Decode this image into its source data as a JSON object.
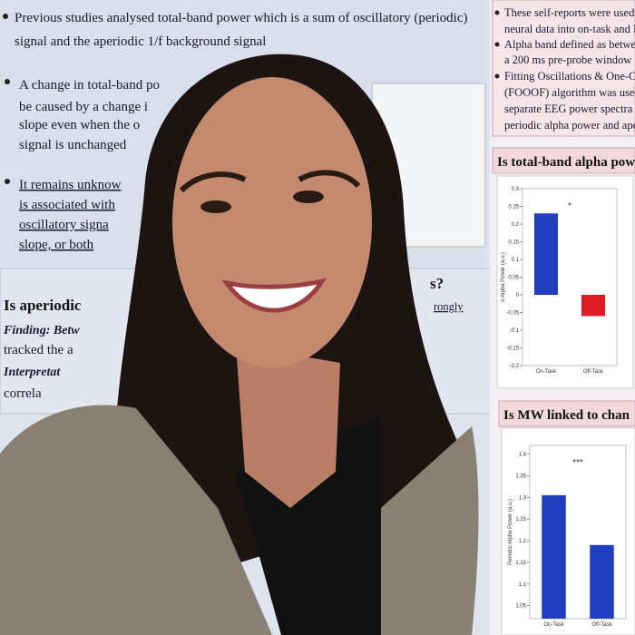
{
  "poster_left": {
    "intro": [
      "Previous studies analysed total-band power which is a sum of oscillatory (periodic)",
      "signal and the aperiodic 1/f background signal"
    ],
    "change": [
      "A change in total-band po",
      "be caused by a change i",
      "slope even when the o",
      "signal is unchanged"
    ],
    "unknown": [
      "It remains unknow",
      "is associated with",
      "oscillatory signa",
      "slope, or both"
    ],
    "heading": "Is aperiodic",
    "heading_end": "s?",
    "finding": "Finding: Betw",
    "finding_end": "rongly",
    "tracked": "tracked the a",
    "interpretation": "Interpretat",
    "correlation": "correla"
  },
  "poster_right": {
    "methods": [
      "These self-reports were used",
      "neural data into on-task and M",
      "Alpha band defined as betwe",
      "a 200 ms pre-probe window",
      "Fitting Oscillations & One-O",
      "(FOOOF) algorithm was used",
      "separate EEG power spectra",
      "periodic alpha power and ape"
    ]
  },
  "charts": [
    {
      "title": "Is total-band alpha pow",
      "ylabel": "z-Alpha Power (a.u.)",
      "significance": "*",
      "categories": [
        "On-Task",
        "Off-Task"
      ],
      "values": [
        0.23,
        -0.06
      ],
      "colors": [
        "#1f3fbf",
        "#e01b24"
      ],
      "ylim": [
        -0.2,
        0.3
      ],
      "yticks": [
        -0.2,
        -0.15,
        -0.1,
        -0.05,
        0,
        0.05,
        0.1,
        0.15,
        0.2,
        0.25,
        0.3
      ]
    },
    {
      "title": "Is MW linked to chan",
      "ylabel": "Periodic Alpha Power (a.u.)",
      "significance": "***",
      "categories": [
        "On-Task",
        "Off-Task"
      ],
      "values": [
        1.305,
        1.19
      ],
      "colors": [
        "#1f3fbf",
        "#1f3fbf"
      ],
      "ylim": [
        1.02,
        1.42
      ],
      "yticks": [
        1.05,
        1.1,
        1.15,
        1.2,
        1.25,
        1.3,
        1.35,
        1.4
      ]
    }
  ]
}
